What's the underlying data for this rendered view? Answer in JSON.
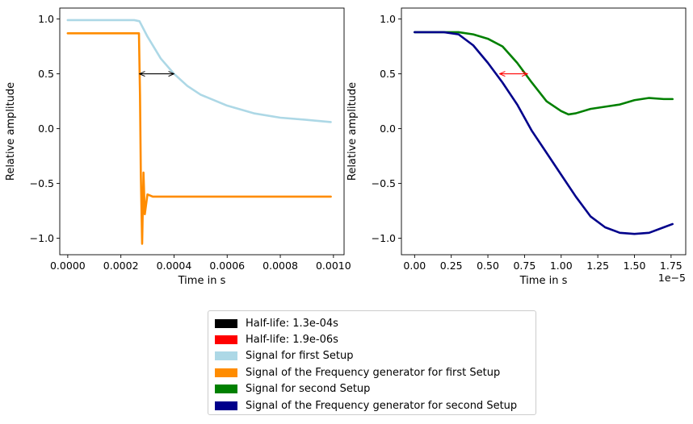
{
  "chart_data": [
    {
      "type": "line",
      "title": "",
      "xlabel": "Time in s",
      "ylabel": "Relative amplitude",
      "xlim": [
        -3e-05,
        0.00104
      ],
      "ylim": [
        -1.15,
        1.1
      ],
      "xticks": [
        0.0,
        0.0002,
        0.0004,
        0.0006,
        0.0008,
        0.001
      ],
      "xtick_labels": [
        "0.0000",
        "0.0002",
        "0.0004",
        "0.0006",
        "0.0008",
        "0.0010"
      ],
      "yticks": [
        -1.0,
        -0.5,
        0.0,
        0.5,
        1.0
      ],
      "ytick_labels": [
        "−1.0",
        "−0.5",
        "0.0",
        "0.5",
        "1.0"
      ],
      "grid": false,
      "series": [
        {
          "name": "Signal for first Setup",
          "color": "#add8e6",
          "x": [
            0.0,
            5e-05,
            0.0001,
            0.00015,
            0.0002,
            0.00025,
            0.00027,
            0.0003,
            0.00035,
            0.0004,
            0.00045,
            0.0005,
            0.0006,
            0.0007,
            0.0008,
            0.0009,
            0.00099
          ],
          "y": [
            0.99,
            0.99,
            0.99,
            0.99,
            0.99,
            0.99,
            0.98,
            0.84,
            0.64,
            0.5,
            0.39,
            0.31,
            0.21,
            0.14,
            0.1,
            0.08,
            0.06
          ]
        },
        {
          "name": "Signal of the Frequency generator for first Setup",
          "color": "#ff8c00",
          "x": [
            0.0,
            5e-05,
            0.0001,
            0.00015,
            0.0002,
            0.00025,
            0.000268,
            0.000272,
            0.000275,
            0.00028,
            0.000285,
            0.00029,
            0.0003,
            0.00032,
            0.0004,
            0.0006,
            0.0008,
            0.00099
          ],
          "y": [
            0.87,
            0.87,
            0.87,
            0.87,
            0.87,
            0.87,
            0.87,
            0.3,
            -0.4,
            -1.05,
            -0.4,
            -0.78,
            -0.6,
            -0.62,
            -0.62,
            -0.62,
            -0.62,
            -0.62
          ]
        }
      ],
      "annotations": [
        {
          "type": "double-arrow",
          "color": "#000000",
          "x0": 0.00027,
          "x1": 0.0004,
          "y": 0.5,
          "label": "Half-life: 1.3e-04s"
        }
      ]
    },
    {
      "type": "line",
      "title": "",
      "xlabel": "Time in s",
      "ylabel": "Relative amplitude",
      "offset_label": "1e−5",
      "xlim": [
        -0.09,
        1.85
      ],
      "ylim": [
        -1.15,
        1.1
      ],
      "xticks": [
        0.0,
        0.25,
        0.5,
        0.75,
        1.0,
        1.25,
        1.5,
        1.75
      ],
      "xtick_labels": [
        "0.00",
        "0.25",
        "0.50",
        "0.75",
        "1.00",
        "1.25",
        "1.50",
        "1.75"
      ],
      "yticks": [
        -1.0,
        -0.5,
        0.0,
        0.5,
        1.0
      ],
      "ytick_labels": [
        "−1.0",
        "−0.5",
        "0.0",
        "0.5",
        "1.0"
      ],
      "grid": false,
      "series": [
        {
          "name": "Signal for second Setup",
          "color": "#008000",
          "x": [
            0.0,
            0.1,
            0.2,
            0.3,
            0.4,
            0.5,
            0.6,
            0.7,
            0.8,
            0.9,
            1.0,
            1.05,
            1.1,
            1.2,
            1.3,
            1.4,
            1.5,
            1.6,
            1.7,
            1.76
          ],
          "y": [
            0.88,
            0.88,
            0.88,
            0.88,
            0.86,
            0.82,
            0.75,
            0.6,
            0.42,
            0.25,
            0.16,
            0.13,
            0.14,
            0.18,
            0.2,
            0.22,
            0.26,
            0.28,
            0.27,
            0.27
          ]
        },
        {
          "name": "Signal of the Frequency generator for second Setup",
          "color": "#00008b",
          "x": [
            0.0,
            0.1,
            0.2,
            0.3,
            0.4,
            0.5,
            0.6,
            0.7,
            0.8,
            0.9,
            1.0,
            1.1,
            1.2,
            1.3,
            1.4,
            1.5,
            1.6,
            1.7,
            1.76
          ],
          "y": [
            0.88,
            0.88,
            0.88,
            0.86,
            0.76,
            0.6,
            0.42,
            0.22,
            -0.02,
            -0.22,
            -0.42,
            -0.62,
            -0.8,
            -0.9,
            -0.95,
            -0.96,
            -0.95,
            -0.9,
            -0.87
          ]
        }
      ],
      "annotations": [
        {
          "type": "double-arrow",
          "color": "#ff0000",
          "x0": 0.58,
          "x1": 0.77,
          "y": 0.5,
          "label": "Half-life: 1.9e-06s"
        }
      ]
    }
  ],
  "legend": {
    "placement": "bottom-center",
    "items": [
      {
        "label": "Half-life: 1.3e-04s",
        "color": "#000000"
      },
      {
        "label": "Half-life: 1.9e-06s",
        "color": "#ff0000"
      },
      {
        "label": "Signal for first Setup",
        "color": "#add8e6"
      },
      {
        "label": "Signal of the Frequency generator for first Setup",
        "color": "#ff8c00"
      },
      {
        "label": "Signal for second Setup",
        "color": "#008000"
      },
      {
        "label": "Signal of the Frequency generator for second Setup",
        "color": "#00008b"
      }
    ]
  }
}
